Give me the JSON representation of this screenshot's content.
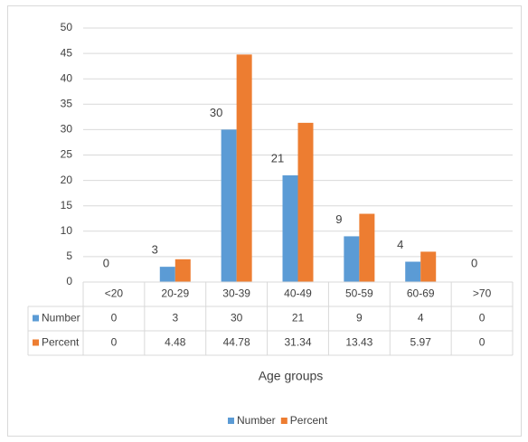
{
  "chart_data": {
    "type": "bar",
    "title": "",
    "xlabel": "Age groups",
    "ylabel": "",
    "ylim": [
      0,
      50
    ],
    "ytick_step": 5,
    "grid": true,
    "legend_position": "bottom",
    "data_table": true,
    "categories": [
      "<20",
      "20-29",
      "30-39",
      "40-49",
      "50-59",
      "60-69",
      ">70"
    ],
    "series": [
      {
        "name": "Number",
        "color": "#5b9bd5",
        "values": [
          0,
          3,
          30,
          21,
          9,
          4,
          0
        ],
        "table_values": [
          "0",
          "3",
          "30",
          "21",
          "9",
          "4",
          "0"
        ],
        "data_labels": [
          "0",
          "3",
          "30",
          "21",
          "9",
          "4",
          "0"
        ]
      },
      {
        "name": "Percent",
        "color": "#ed7d31",
        "values": [
          0,
          4.48,
          44.78,
          31.34,
          13.43,
          5.97,
          0
        ],
        "table_values": [
          "0",
          "4.48",
          "44.78",
          "31.34",
          "13.43",
          "5.97",
          "0"
        ]
      }
    ]
  }
}
